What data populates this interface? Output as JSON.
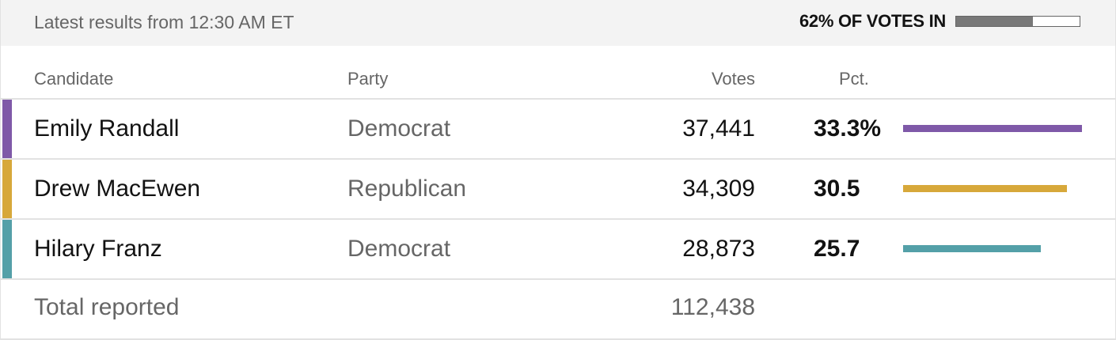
{
  "header": {
    "updated_text": "Latest results from 12:30 AM ET",
    "reporting_label": "62% OF VOTES IN",
    "reporting_fraction": 0.62
  },
  "columns": {
    "candidate": "Candidate",
    "party": "Party",
    "votes": "Votes",
    "pct": "Pct."
  },
  "candidates": [
    {
      "name": "Emily Randall",
      "party": "Democrat",
      "votes": "37,441",
      "pct_label": "33.3%",
      "pct": 33.3,
      "color": "#7f59a8"
    },
    {
      "name": "Drew MacEwen",
      "party": "Republican",
      "votes": "34,309",
      "pct_label": "30.5",
      "pct": 30.5,
      "color": "#d7a83a"
    },
    {
      "name": "Hilary Franz",
      "party": "Democrat",
      "votes": "28,873",
      "pct_label": "25.7",
      "pct": 25.7,
      "color": "#54a0a8"
    }
  ],
  "total": {
    "label": "Total reported",
    "votes": "112,438"
  },
  "colors": {
    "text": "#121212",
    "muted": "#666666",
    "rule": "#e2e2e2",
    "topbar": "#f3f3f3",
    "progress_fill": "#787878"
  }
}
